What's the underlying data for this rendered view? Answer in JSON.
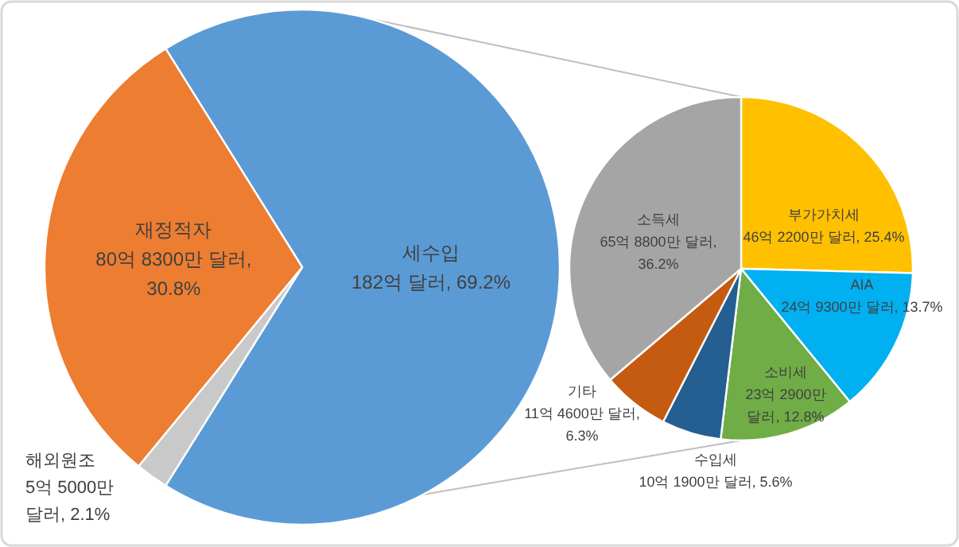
{
  "chart_data": [
    {
      "type": "pie",
      "categories": [
        "세수입",
        "해외원조",
        "재정적자"
      ],
      "values": [
        69.2,
        2.1,
        30.8
      ],
      "colors": [
        "#5b9bd5",
        "#c9c9c9",
        "#ed7d31"
      ],
      "value_labels": [
        "182억 달러, 69.2%",
        "5억 5000만\n달러, 2.1%",
        "80억 8300만 달러,\n30.8%"
      ]
    },
    {
      "type": "pie",
      "categories": [
        "부가가치세",
        "AIA",
        "소비세",
        "수입세",
        "기타",
        "소득세"
      ],
      "values": [
        25.4,
        13.7,
        12.8,
        5.6,
        6.3,
        36.2
      ],
      "colors": [
        "#ffc000",
        "#00b0f0",
        "#70ad47",
        "#255e91",
        "#c55a11",
        "#a5a5a5"
      ],
      "value_labels": [
        "46억 2200만 달러, 25.4%",
        "24억 9300만 달러, 13.7%",
        "23억 2900만\n달러, 12.8%",
        "10억 1900만 달러, 5.6%",
        "11억 4600만 달러,\n6.3%",
        "65억 8800만 달러,\n36.2%"
      ]
    }
  ]
}
